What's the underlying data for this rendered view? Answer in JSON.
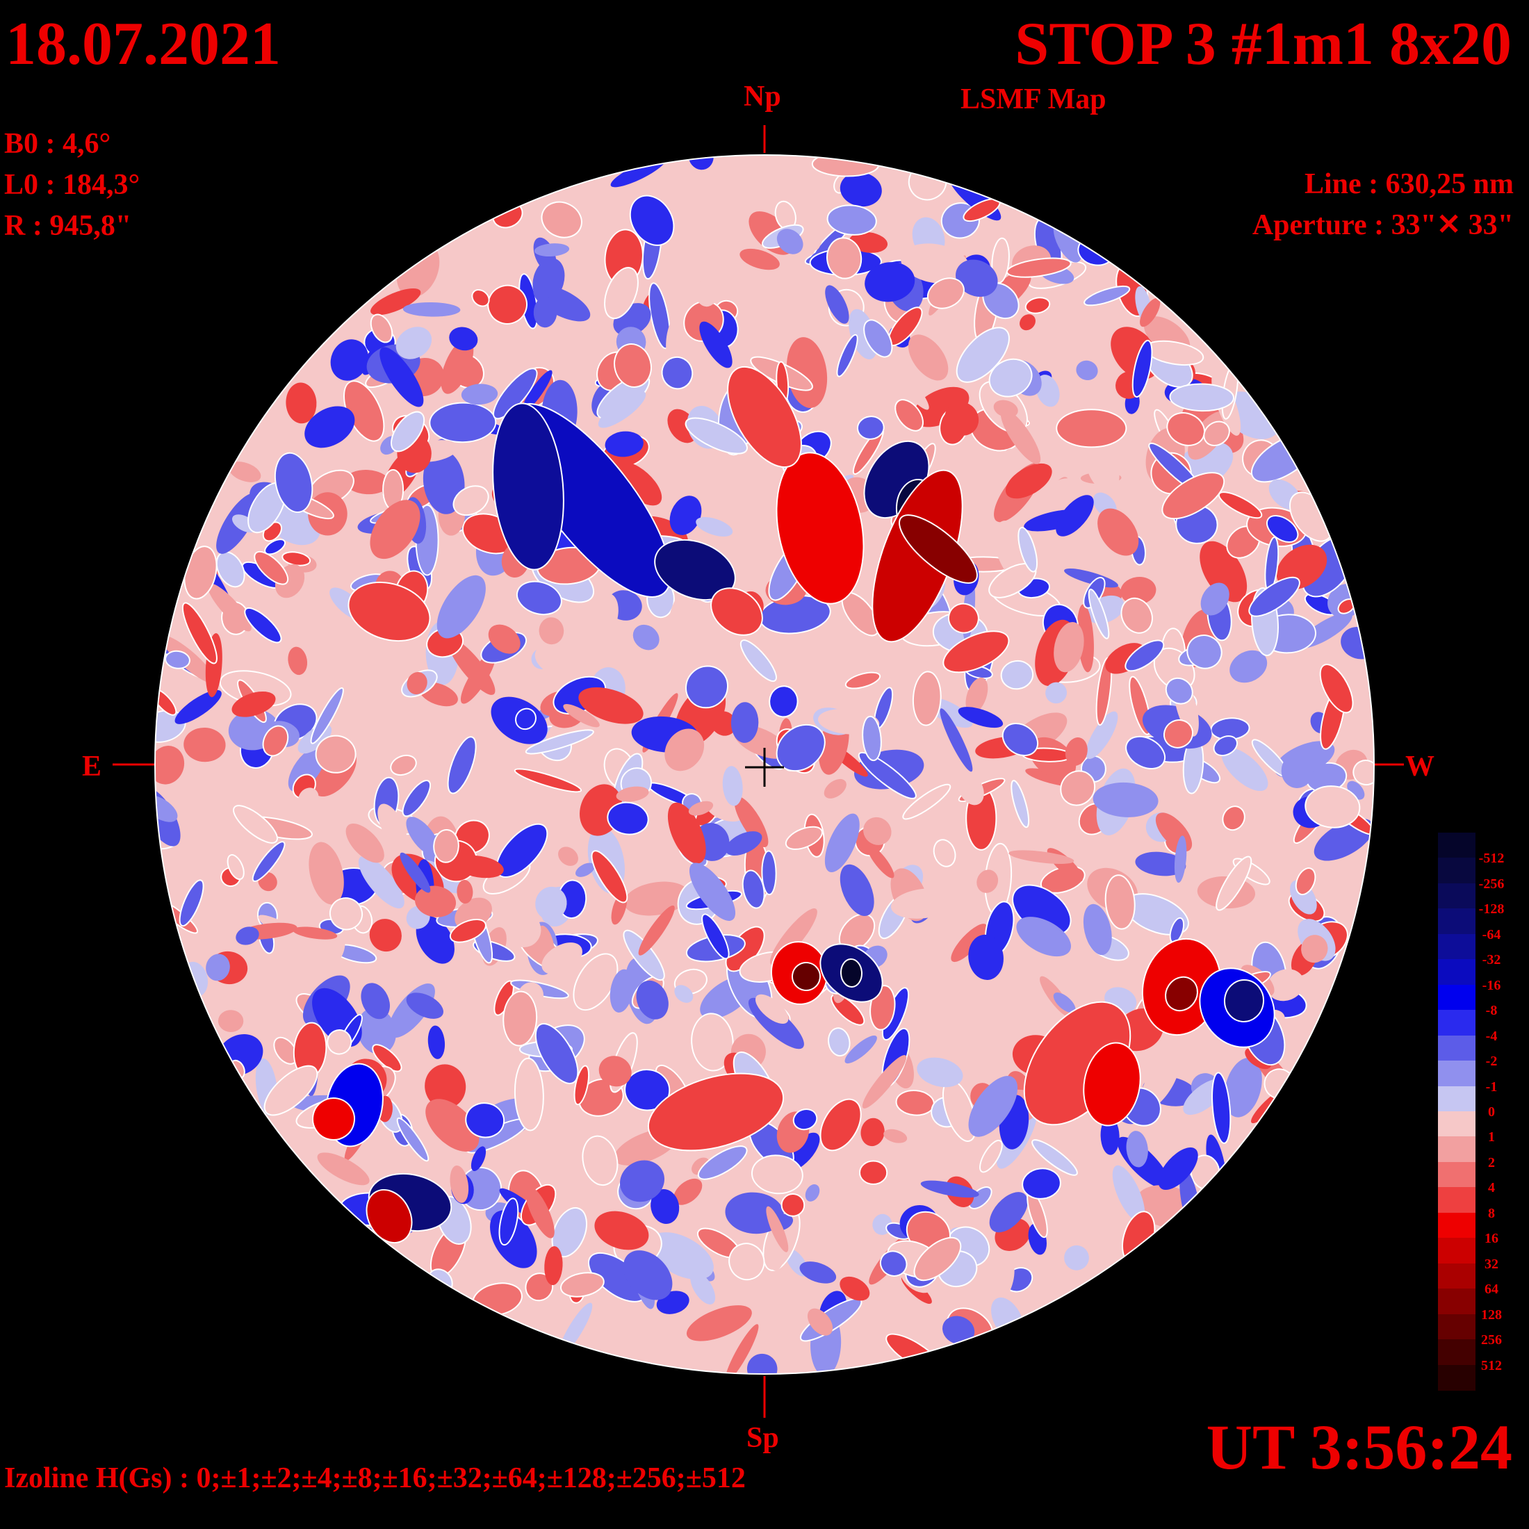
{
  "header": {
    "date": "18.07.2021",
    "title": "STOP 3 #1m1 8x20",
    "subtitle": "LSMF  Map"
  },
  "params": {
    "b0": "B0 : 4,6°",
    "l0": "L0 : 184,3°",
    "r": "R  : 945,8\""
  },
  "instrument": {
    "line": "Line :  630,25 nm",
    "aperture": "Aperture : 33\"✕ 33\""
  },
  "directions": {
    "north": "Np",
    "south": "Sp",
    "east": "E",
    "west": "W"
  },
  "footer": {
    "time": "UT 3:56:24",
    "izoline": "Izoline H(Gs) : 0;±1;±2;±4;±8;±16;±32;±64;±128;±256;±512"
  },
  "colorbar": {
    "labels": [
      "-512",
      "-256",
      "-128",
      "-64",
      "-32",
      "-16",
      "-8",
      "-4",
      "-2",
      "-1",
      "0",
      "1",
      "2",
      "4",
      "8",
      "16",
      "32",
      "64",
      "128",
      "256",
      "512"
    ],
    "colors": [
      "#05052a",
      "#08083f",
      "#0a0a5a",
      "#0c0c78",
      "#0d0d99",
      "#0b0bbf",
      "#0000ee",
      "#2a2aee",
      "#5c5ce8",
      "#9090ee",
      "#c6c6f2",
      "#f6c8c8",
      "#f2a0a0",
      "#f07070",
      "#ee4040",
      "#ee0000",
      "#cc0000",
      "#aa0000",
      "#880000",
      "#660000",
      "#440000",
      "#280000"
    ]
  },
  "colors": {
    "text": "#ee0000",
    "background": "#000000"
  }
}
